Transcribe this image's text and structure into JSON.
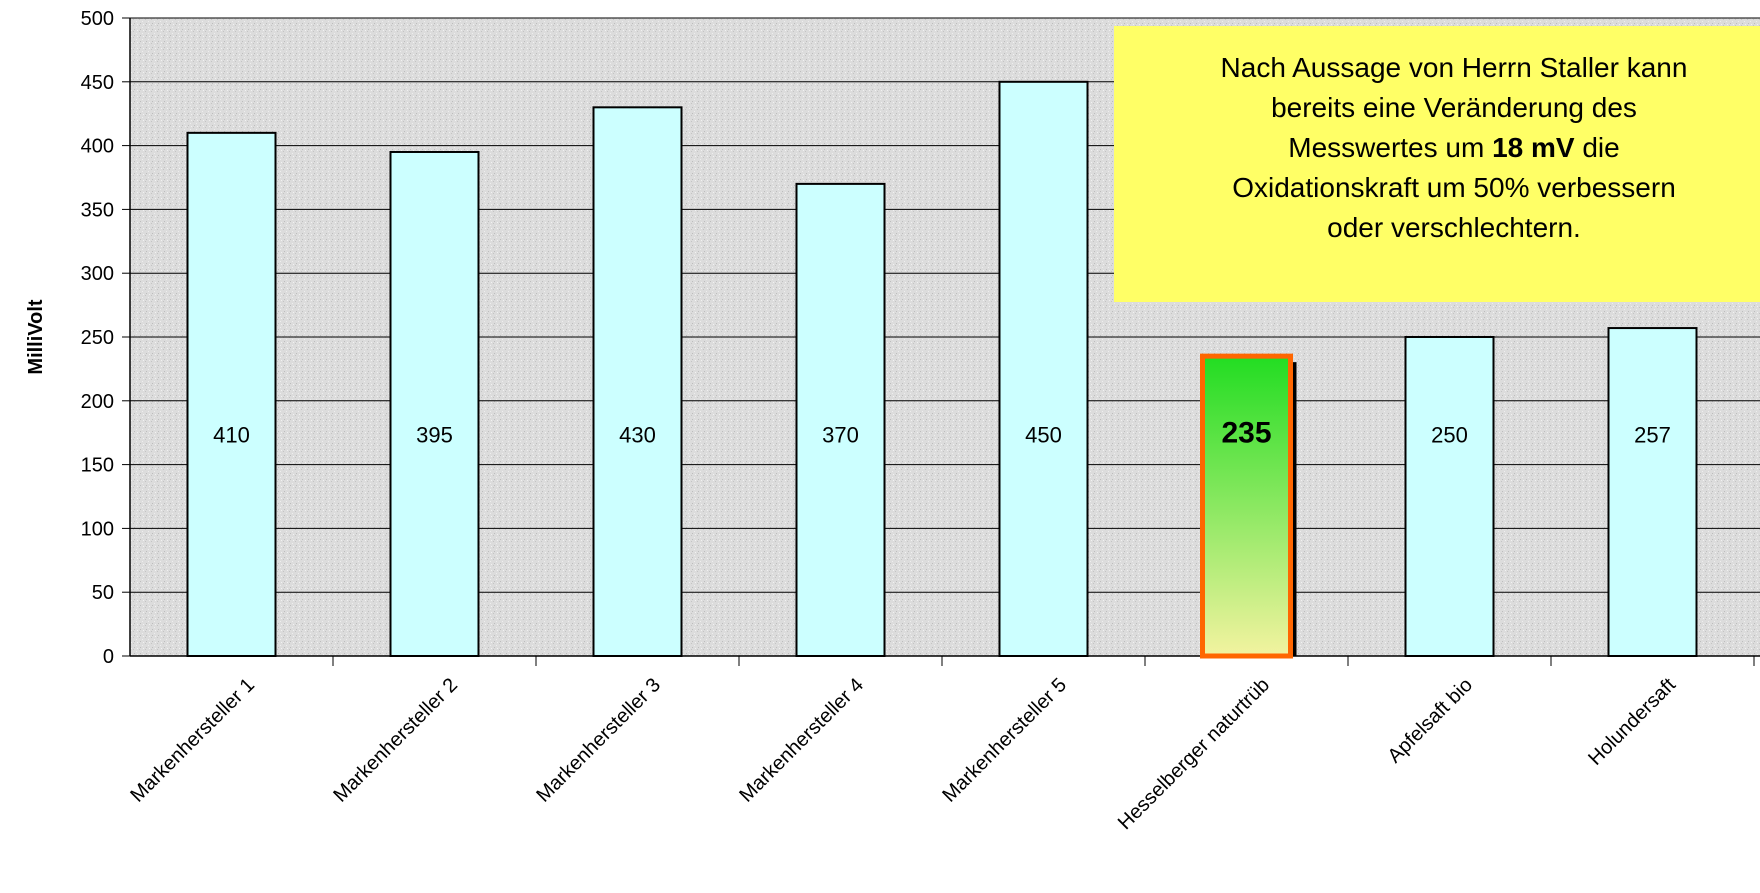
{
  "chart_data": {
    "type": "bar",
    "categories": [
      "Markenhersteller 1",
      "Markenhersteller 2",
      "Markenhersteller 3",
      "Markenhersteller 4",
      "Markenhersteller 5",
      "Hesselberger naturtrüb",
      "Apfelsaft bio",
      "Holundersaft"
    ],
    "values": [
      410,
      395,
      430,
      370,
      450,
      235,
      250,
      257
    ],
    "value_labels": [
      "410",
      "395",
      "430",
      "370",
      "450",
      "235",
      "250",
      "257"
    ],
    "highlight_index": 5,
    "ylabel": "MilliVolt",
    "ylim": [
      0,
      500
    ],
    "yticks": [
      0,
      50,
      100,
      150,
      200,
      250,
      300,
      350,
      400,
      450,
      500
    ],
    "grid": true,
    "colors": {
      "bar_fill": "#ccffff",
      "bar_stroke": "#000000",
      "highlight_top": "#22dd22",
      "highlight_bottom": "#f3f3a0",
      "highlight_stroke": "#ff6600",
      "plot_background": "#dcdcdc",
      "note_background": "#ffff66"
    }
  },
  "note": {
    "line1": "Nach Aussage von Herrn Staller kann",
    "line2": "bereits eine Veränderung des",
    "line3_pre": "Messwertes um ",
    "line3_bold": "18 mV",
    "line3_post": " die",
    "line4": "Oxidationskraft um 50% verbessern",
    "line5": "oder verschlechtern."
  }
}
